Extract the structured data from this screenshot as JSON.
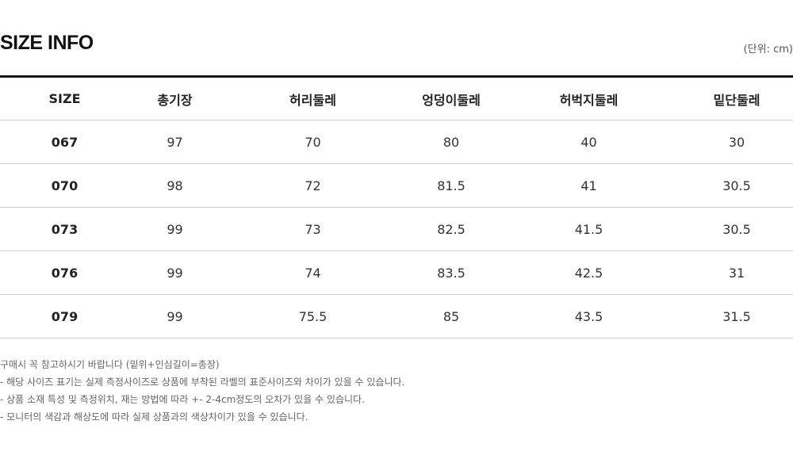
{
  "header": {
    "title": "SIZE INFO",
    "unit": "(단위: cm)"
  },
  "table": {
    "columns": [
      "SIZE",
      "총기장",
      "허리둘레",
      "엉덩이둘레",
      "허벅지둘레",
      "밑단둘레"
    ],
    "rows": [
      [
        "067",
        "97",
        "70",
        "80",
        "40",
        "30"
      ],
      [
        "070",
        "98",
        "72",
        "81.5",
        "41",
        "30.5"
      ],
      [
        "073",
        "99",
        "73",
        "82.5",
        "41.5",
        "30.5"
      ],
      [
        "076",
        "99",
        "74",
        "83.5",
        "42.5",
        "31"
      ],
      [
        "079",
        "99",
        "75.5",
        "85",
        "43.5",
        "31.5"
      ]
    ]
  },
  "notes": [
    "구매시 꼭 참고하시기 바랍니다 (밑위+인심길이=총장)",
    "- 해당 사이즈 표기는 실제 측정사이즈로 상품에 부착된 라벨의 표준사이즈와 차이가 있을 수 있습니다.",
    "- 상품 소재 특성 및 측정위치, 재는 방법에 따라 +- 2-4cm정도의 오차가 있을 수 있습니다.",
    "- 모니터의 색감과 해상도에 따라 실제 상품과의 색상차이가 있을 수 있습니다."
  ]
}
